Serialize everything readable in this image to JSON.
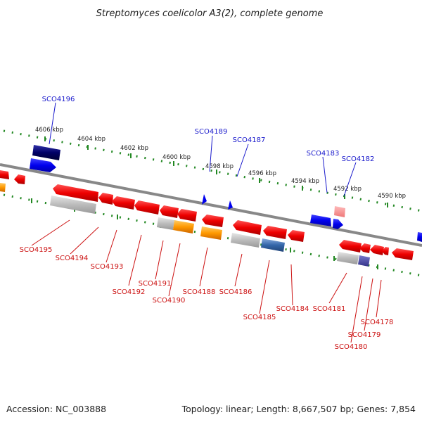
{
  "header": {
    "title": "Streptomyces coelicolor A3(2), complete genome"
  },
  "footer": {
    "accession": "Accession: NC_003888",
    "summary": "Topology: linear; Length: 8,667,507 bp; Genes: 7,854"
  },
  "ruler": {
    "labels": [
      "4606 kbp",
      "4604 kbp",
      "4602 kbp",
      "4600 kbp",
      "4598 kbp",
      "4596 kbp",
      "4594 kbp",
      "4592 kbp",
      "4590 kbp"
    ]
  },
  "genes_forward": [
    "SCO4196",
    "SCO4189",
    "SCO4187",
    "SCO4183",
    "SCO4182"
  ],
  "genes_reverse": [
    "SCO4195",
    "SCO4194",
    "SCO4193",
    "SCO4192",
    "SCO4191",
    "SCO4190",
    "SCO4188",
    "SCO4186",
    "SCO4185",
    "SCO4184",
    "SCO4181",
    "SCO4180",
    "SCO4179",
    "SCO4178"
  ],
  "colors": {
    "forward_gene": "#0000ff",
    "reverse_gene": "#ff0000",
    "ruler_tick": "#228822",
    "backbone": "#888888",
    "orange_feature": "#ff9900",
    "gray_feature": "#bbbbbb",
    "dark_blue_feature": "#000066",
    "steel_feature": "#3366aa"
  }
}
